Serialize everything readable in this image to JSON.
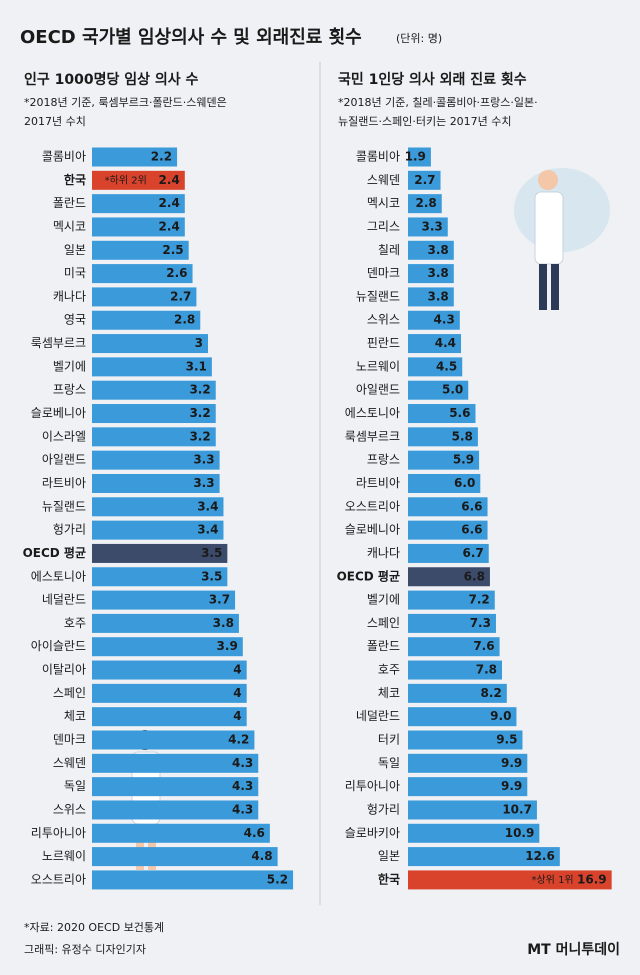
{
  "title": "OECD 국가별 임상의사 수 및 외래진료 횟수",
  "unit": "(단위: 명)",
  "footer": {
    "source": "*자료: 2020 OECD 보건통계",
    "credit": "그래픽: 유정수 디자인기자",
    "logo": "MT 머니투데이"
  },
  "chart_data": [
    {
      "type": "bar",
      "orientation": "horizontal",
      "title": "인구 1000명당 임상 의사 수",
      "note": [
        "*2018년 기준, 룩셈부르크·폴란드·스웨덴은",
        "2017년 수치"
      ],
      "categories": [
        "콜롬비아",
        "한국",
        "폴란드",
        "멕시코",
        "일본",
        "미국",
        "캐나다",
        "영국",
        "룩셈부르크",
        "벨기에",
        "프랑스",
        "슬로베니아",
        "이스라엘",
        "아일랜드",
        "라트비아",
        "뉴질랜드",
        "헝가리",
        "OECD 평균",
        "에스토니아",
        "네덜란드",
        "호주",
        "아이슬란드",
        "이탈리아",
        "스페인",
        "체코",
        "덴마크",
        "스웨덴",
        "독일",
        "스위스",
        "리투아니아",
        "노르웨이",
        "오스트리아"
      ],
      "values": [
        2.2,
        2.4,
        2.4,
        2.4,
        2.5,
        2.6,
        2.7,
        2.8,
        3,
        3.1,
        3.2,
        3.2,
        3.2,
        3.3,
        3.3,
        3.4,
        3.4,
        3.5,
        3.5,
        3.7,
        3.8,
        3.9,
        4,
        4,
        4,
        4.2,
        4.3,
        4.3,
        4.3,
        4.6,
        4.8,
        5.2
      ],
      "color": "#3b9ad9",
      "xlim": [
        0,
        6
      ],
      "highlights": [
        {
          "category": "한국",
          "color": "#d9432c",
          "text_color": "#ffe94d",
          "label_color": "#d9432c"
        },
        {
          "category": "OECD 평균",
          "color": "#3d4b6b",
          "text_color": "#ffe94d",
          "label_color": "#1a1a1a"
        }
      ],
      "annotations": [
        {
          "category": "한국",
          "text": "*하위 2위"
        }
      ]
    },
    {
      "type": "bar",
      "orientation": "horizontal",
      "title": "국민 1인당 의사 외래 진료 횟수",
      "note": [
        "*2018년 기준, 칠레·콜롬비아·프랑스·일본·",
        "뉴질랜드·스페인·터키는 2017년 수치"
      ],
      "categories": [
        "콜롬비아",
        "스웨덴",
        "멕시코",
        "그리스",
        "칠레",
        "덴마크",
        "뉴질랜드",
        "스위스",
        "핀란드",
        "노르웨이",
        "아일랜드",
        "에스토니아",
        "룩셈부르크",
        "프랑스",
        "라트비아",
        "오스트리아",
        "슬로베니아",
        "캐나다",
        "OECD 평균",
        "벨기에",
        "스페인",
        "폴란드",
        "호주",
        "체코",
        "네덜란드",
        "터키",
        "독일",
        "리투아니아",
        "헝가리",
        "슬로바키아",
        "일본",
        "한국"
      ],
      "values": [
        1.9,
        2.7,
        2.8,
        3.3,
        3.8,
        3.8,
        3.8,
        4.3,
        4.4,
        4.5,
        5.0,
        5.6,
        5.8,
        5.9,
        6.0,
        6.6,
        6.6,
        6.7,
        6.8,
        7.2,
        7.3,
        7.6,
        7.8,
        8.2,
        9.0,
        9.5,
        9.9,
        9.9,
        10.7,
        10.9,
        12.6,
        16.9
      ],
      "value_labels": [
        "1.9",
        "2.7",
        "2.8",
        "3.3",
        "3.8",
        "3.8",
        "3.8",
        "4.3",
        "4.4",
        "4.5",
        "5.0",
        "5.6",
        "5.8",
        "5.9",
        "6.0",
        "6.6",
        "6.6",
        "6.7",
        "6.8",
        "7.2",
        "7.3",
        "7.6",
        "7.8",
        "8.2",
        "9.0",
        "9.5",
        "9.9",
        "9.9",
        "10.7",
        "10.9",
        "12.6",
        "16.9"
      ],
      "color": "#3b9ad9",
      "xlim": [
        0,
        20
      ],
      "highlights": [
        {
          "category": "OECD 평균",
          "color": "#3d4b6b",
          "text_color": "#ffe94d",
          "label_color": "#1a1a1a"
        },
        {
          "category": "한국",
          "color": "#d9432c",
          "text_color": "#ffe94d",
          "label_color": "#1a1a1a"
        }
      ],
      "annotations": [
        {
          "category": "한국",
          "text": "*상위 1위"
        }
      ]
    }
  ]
}
